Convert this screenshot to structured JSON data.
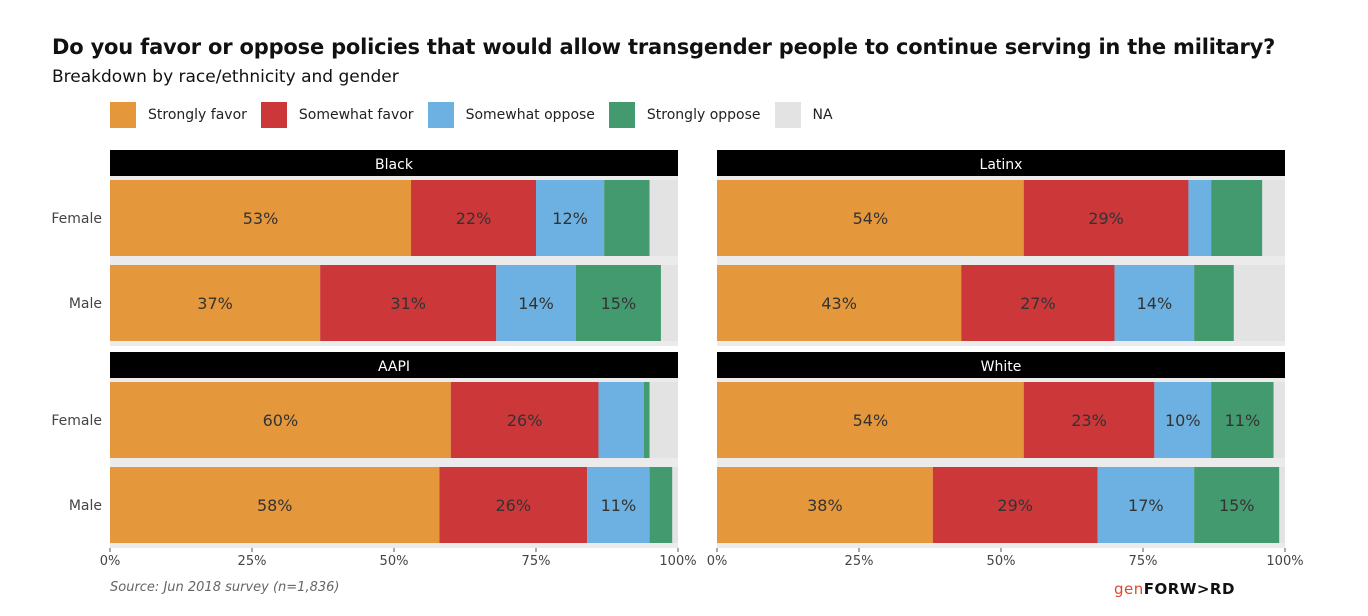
{
  "title": "Do you favor or oppose policies that would allow transgender people to continue serving in the military?",
  "subtitle": "Breakdown by race/ethnicity and gender",
  "source": "Source: Jun 2018 survey (n=1,836)",
  "logo": {
    "left": "gen",
    "right": "FORW>RD"
  },
  "colors": {
    "Strongly favor": "#e5973c",
    "Somewhat favor": "#cc373a",
    "Somewhat oppose": "#6cb1e1",
    "Strongly oppose": "#449a6f",
    "NA": "#e3e3e3",
    "strip": "#000000",
    "panel_bg": "#ebebeb"
  },
  "chart_data": {
    "type": "bar",
    "orientation": "horizontal-stacked",
    "title": "Do you favor or oppose policies that would allow transgender people to continue serving in the military?",
    "subtitle": "Breakdown by race/ethnicity and gender",
    "legend": [
      "Strongly favor",
      "Somewhat favor",
      "Somewhat oppose",
      "Strongly oppose",
      "NA"
    ],
    "legend_position": "top-left",
    "xlim": [
      0,
      100
    ],
    "x_ticks": [
      "0%",
      "25%",
      "50%",
      "75%",
      "100%"
    ],
    "x_tick_values": [
      0,
      25,
      50,
      75,
      100
    ],
    "label_threshold": 10,
    "panels": [
      {
        "name": "Black",
        "rows": [
          {
            "label": "Female",
            "values": [
              53,
              22,
              12,
              8,
              5
            ]
          },
          {
            "label": "Male",
            "values": [
              37,
              31,
              14,
              15,
              3
            ]
          }
        ]
      },
      {
        "name": "Latinx",
        "rows": [
          {
            "label": "Female",
            "values": [
              54,
              29,
              4,
              9,
              4
            ]
          },
          {
            "label": "Male",
            "values": [
              43,
              27,
              14,
              7,
              9
            ]
          }
        ]
      },
      {
        "name": "AAPI",
        "rows": [
          {
            "label": "Female",
            "values": [
              60,
              26,
              8,
              1,
              5
            ]
          },
          {
            "label": "Male",
            "values": [
              58,
              26,
              11,
              4,
              1
            ]
          }
        ]
      },
      {
        "name": "White",
        "rows": [
          {
            "label": "Female",
            "values": [
              54,
              23,
              10,
              11,
              2
            ]
          },
          {
            "label": "Male",
            "values": [
              38,
              29,
              17,
              15,
              1
            ]
          }
        ]
      }
    ]
  }
}
